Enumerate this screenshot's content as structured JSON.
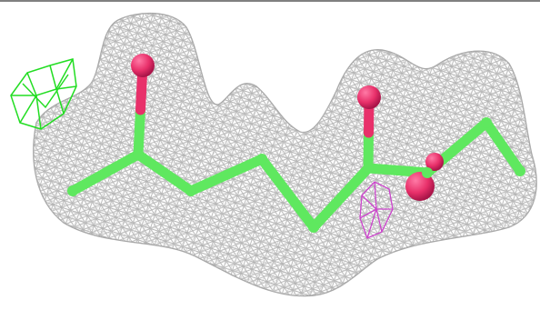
{
  "viewer": {
    "background": "#ffffff",
    "colors": {
      "mesh": "#b4b4b4",
      "carbon": "#5fe85f",
      "oxygen": "#e8306a",
      "positive_density": "#22dd22",
      "negative_density": "#cc44cc",
      "frame_line": "#000000"
    },
    "model": {
      "atoms": [
        "carbon",
        "carbon",
        "oxygen",
        "carbon",
        "carbon",
        "carbon",
        "carbon",
        "carbon",
        "carbon",
        "oxygen",
        "oxygen",
        "carbon",
        "carbon"
      ],
      "icons": [
        "density-mesh-icon",
        "positive-difference-density-icon",
        "negative-difference-density-icon"
      ]
    }
  }
}
